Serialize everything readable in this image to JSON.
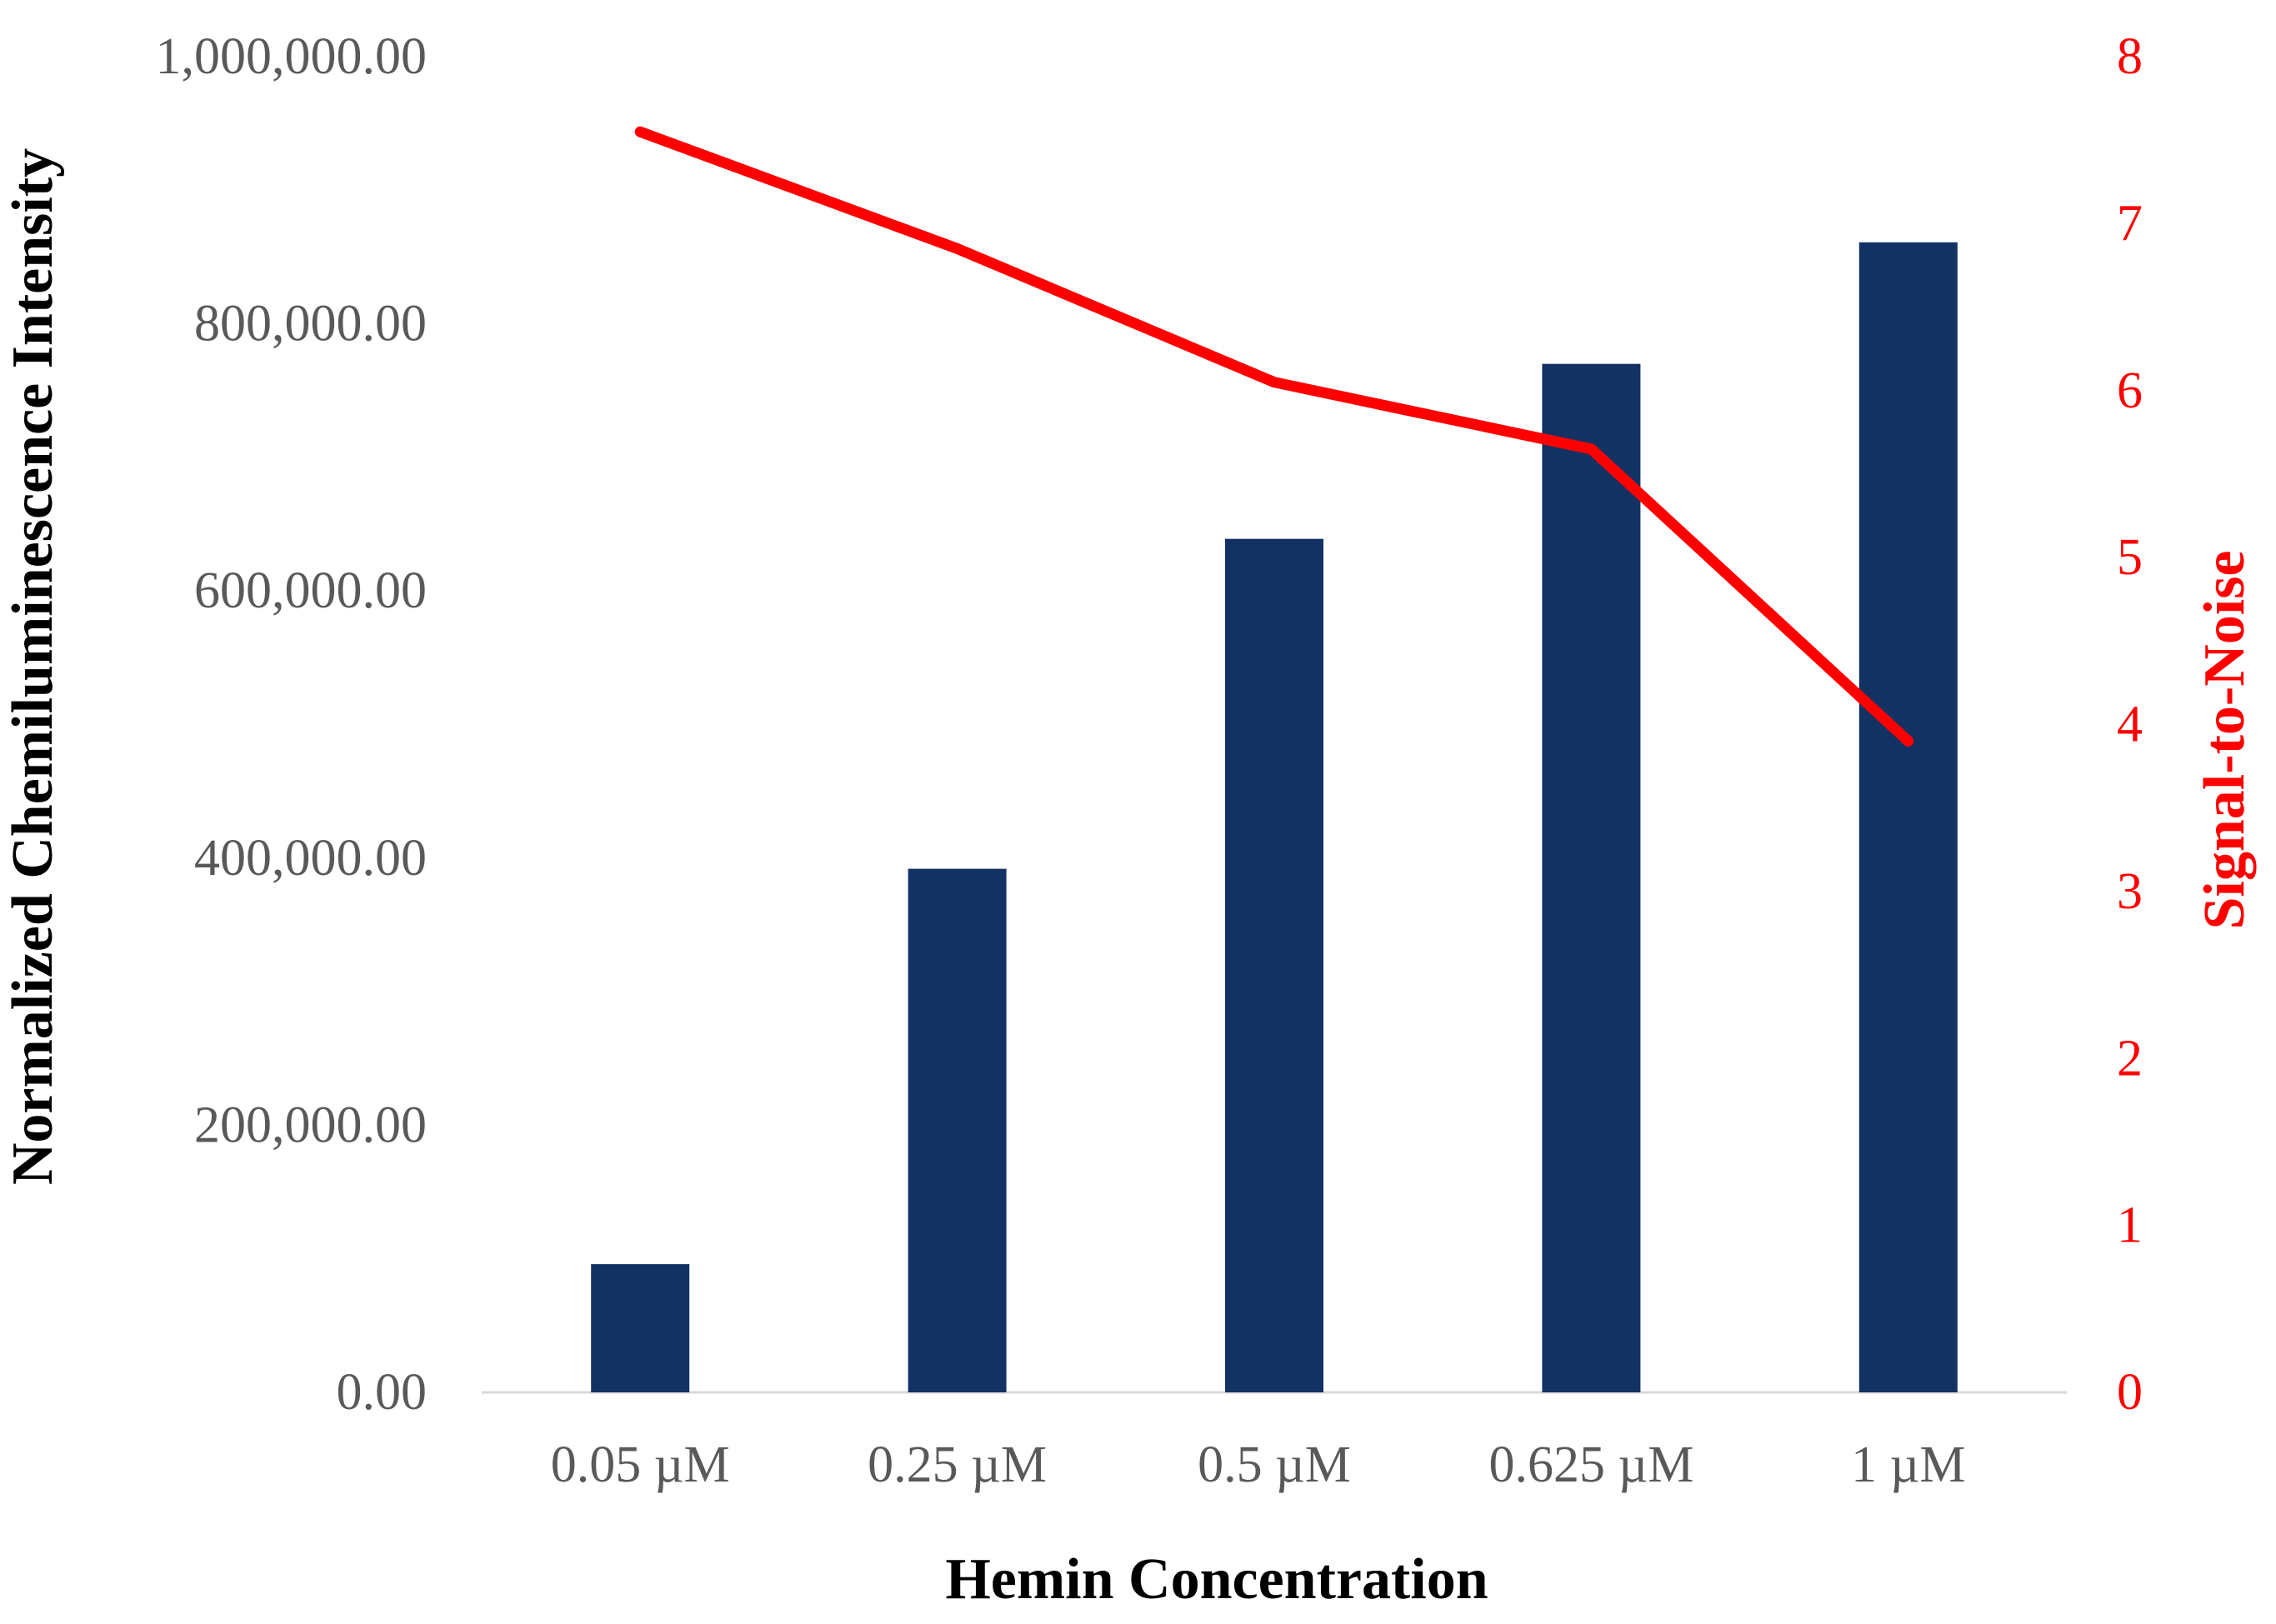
{
  "chart_data": {
    "type": "bar",
    "categories": [
      "0.05 µM",
      "0.25 µM",
      "0.5 µM",
      "0.625 µM",
      "1 µM"
    ],
    "series": [
      {
        "axis": "left",
        "type": "bar",
        "color": "#133264",
        "values": [
          96000,
          392000,
          639000,
          770000,
          861000
        ]
      },
      {
        "axis": "right",
        "type": "line",
        "color": "#ff0000",
        "values": [
          7.55,
          6.85,
          6.05,
          5.65,
          3.9
        ]
      }
    ],
    "xlabel": "Hemin Concentration",
    "ylabel": "Normalized Chemiluminescence Intensity",
    "y2label": "Signal-to-Noise",
    "ylim": [
      0,
      1000000
    ],
    "y2lim": [
      0,
      8
    ],
    "yticks": [
      "0.00",
      "200,000.00",
      "400,000.00",
      "600,000.00",
      "800,000.00",
      "1,000,000.00"
    ],
    "y2ticks": [
      "0",
      "1",
      "2",
      "3",
      "4",
      "5",
      "6",
      "7",
      "8"
    ],
    "grid": false,
    "legend": "none"
  }
}
